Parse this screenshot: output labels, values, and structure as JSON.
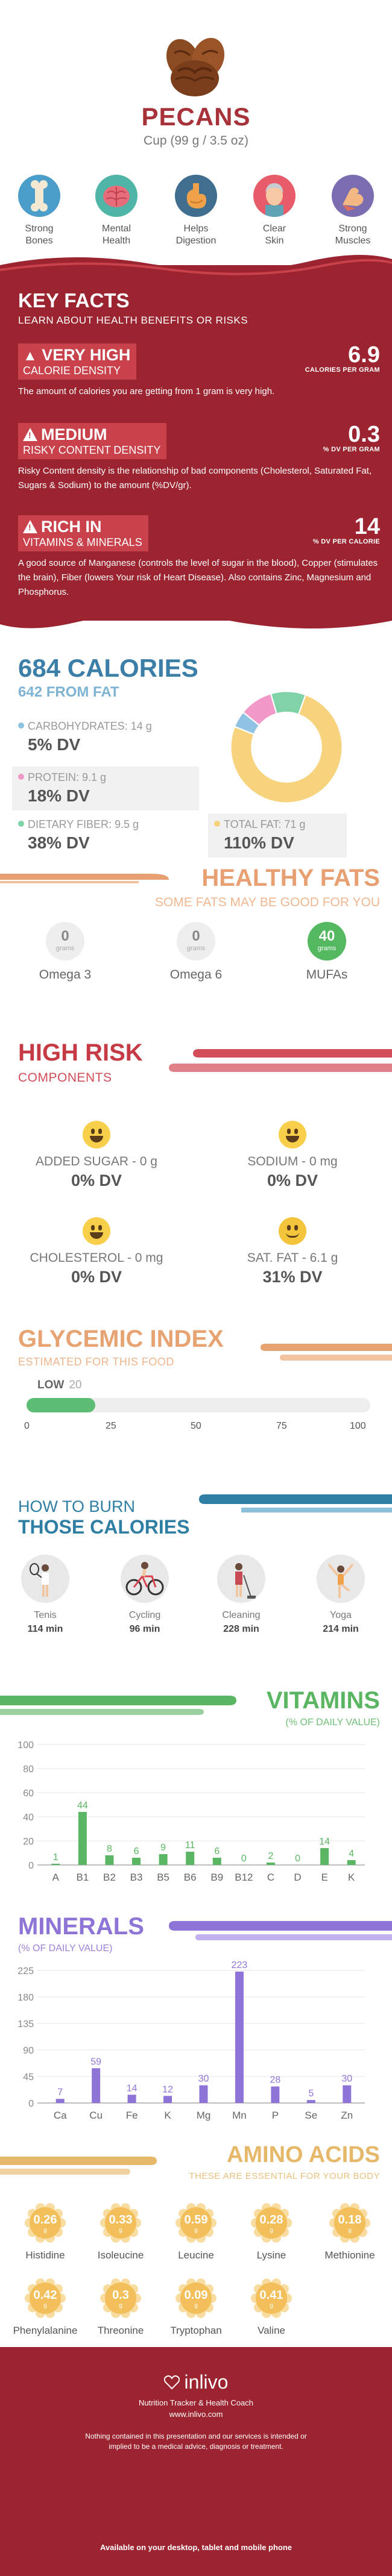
{
  "header": {
    "title": "PECANS",
    "serving": "Cup (99 g / 3.5 oz)",
    "benefits": [
      {
        "label_line1": "Strong",
        "label_line2": "Bones",
        "icon": "bone-icon"
      },
      {
        "label_line1": "Mental",
        "label_line2": "Health",
        "icon": "brain-icon"
      },
      {
        "label_line1": "Helps",
        "label_line2": "Digestion",
        "icon": "stomach-icon"
      },
      {
        "label_line1": "Clear",
        "label_line2": "Skin",
        "icon": "face-icon"
      },
      {
        "label_line1": "Strong",
        "label_line2": "Muscles",
        "icon": "muscle-icon"
      }
    ]
  },
  "key_facts": {
    "title": "KEY FACTS",
    "subtitle": "LEARN ABOUT HEALTH BENEFITS OR RISKS",
    "calorie": {
      "level": "VERY HIGH",
      "label": "CALORIE DENSITY",
      "value": "6.9",
      "unit": "CALORIES PER GRAM",
      "desc": "The amount of calories you are getting from 1 gram is very high."
    },
    "risky": {
      "level": "MEDIUM",
      "label": "RISKY CONTENT DENSITY",
      "value": "0.3",
      "unit": "% DV PER GRAM",
      "desc": "Risky Content density is the relationship of bad components (Cholesterol, Saturated Fat, Sugars & Sodium) to the amount (%DV/gr)."
    },
    "rich": {
      "level": "RICH IN",
      "label": "VITAMINS & MINERALS",
      "value": "14",
      "unit": "% DV PER CALORIE",
      "desc": "A good source of Manganese (controls the level of sugar in the blood), Copper (stimulates the brain), Fiber (lowers Your risk of Heart Disease). Also contains Zinc, Magnesium and Phosphorus."
    }
  },
  "calories": {
    "title": "684 CALORIES",
    "subtitle": "642 FROM FAT",
    "macros": [
      {
        "name": "CARBOHYDRATES: 14 g",
        "dv": "5% DV",
        "color": "#8ec3e3"
      },
      {
        "name": "PROTEIN: 9.1 g",
        "dv": "18% DV",
        "color": "#f19aca"
      },
      {
        "name": "DIETARY FIBER: 9.5 g",
        "dv": "38% DV",
        "color": "#7fd3a7"
      },
      {
        "name": "TOTAL FAT: 71 g",
        "dv": "110% DV",
        "color": "#f6d37c"
      }
    ],
    "donut": [
      {
        "name": "Total Fat",
        "value": 71,
        "color": "#f6d37c"
      },
      {
        "name": "Carbohydrates",
        "value": 4.5,
        "color": "#8ec3e3"
      },
      {
        "name": "Protein",
        "value": 9.1,
        "color": "#f19aca"
      },
      {
        "name": "Dietary Fiber",
        "value": 9.5,
        "color": "#7fd3a7"
      }
    ]
  },
  "fats": {
    "title": "HEALTHY FATS",
    "subtitle": "SOME FATS MAY BE GOOD FOR YOU",
    "unit": "grams",
    "items": [
      {
        "name": "Omega 3",
        "value": "0"
      },
      {
        "name": "Omega 6",
        "value": "0"
      },
      {
        "name": "MUFAs",
        "value": "40"
      }
    ]
  },
  "risk": {
    "title": "HIGH RISK",
    "subtitle": "COMPONENTS",
    "items": [
      {
        "name": "ADDED SUGAR - 0 g",
        "dv": "0% DV"
      },
      {
        "name": "SODIUM - 0 mg",
        "dv": "0% DV"
      },
      {
        "name": "CHOLESTEROL - 0 mg",
        "dv": "0% DV"
      },
      {
        "name": "SAT. FAT - 6.1 g",
        "dv": "31% DV"
      }
    ]
  },
  "glycemic": {
    "title": "GLYCEMIC INDEX",
    "subtitle": "ESTIMATED FOR THIS FOOD",
    "level": "LOW",
    "value": 20,
    "value_label": "20",
    "ticks": [
      "0",
      "25",
      "50",
      "75",
      "100"
    ]
  },
  "burn": {
    "title1": "HOW TO BURN",
    "title2": "THOSE CALORIES",
    "activities": [
      {
        "name": "Tenis",
        "minutes": "114 min"
      },
      {
        "name": "Cycling",
        "minutes": "96 min"
      },
      {
        "name": "Cleaning",
        "minutes": "228 min"
      },
      {
        "name": "Yoga",
        "minutes": "214 min"
      }
    ]
  },
  "vitamins": {
    "title": "VITAMINS",
    "subtitle": "(% OF DAILY VALUE)",
    "color": "#5ab662",
    "ticks": [
      "100",
      "80",
      "60",
      "40",
      "20",
      "0"
    ],
    "ymax": 100,
    "categories": [
      "A",
      "B1",
      "B2",
      "B3",
      "B5",
      "B6",
      "B9",
      "B12",
      "C",
      "D",
      "E",
      "K"
    ],
    "values": [
      1,
      44,
      8,
      6,
      9,
      11,
      6,
      0,
      2,
      0,
      14,
      4
    ],
    "labels": [
      "1",
      "44",
      "8",
      "6",
      "9",
      "11",
      "6",
      "0",
      "2",
      "0",
      "14",
      "4"
    ]
  },
  "minerals": {
    "title": "MINERALS",
    "subtitle": "(% OF DAILY VALUE)",
    "color": "#8f74d8",
    "ticks": [
      "225",
      "180",
      "135",
      "90",
      "45",
      "0"
    ],
    "ymax": 225,
    "categories": [
      "Ca",
      "Cu",
      "Fe",
      "K",
      "Mg",
      "Mn",
      "P",
      "Se",
      "Zn"
    ],
    "values": [
      7,
      59,
      14,
      12,
      30,
      223,
      28,
      5,
      30
    ],
    "labels": [
      "7",
      "59",
      "14",
      "12",
      "30",
      "223",
      "28",
      "5",
      "30"
    ]
  },
  "amino": {
    "title": "AMINO ACIDS",
    "subtitle": "THESE ARE ESSENTIAL FOR YOUR BODY",
    "unit": "g",
    "items": [
      {
        "name": "Histidine",
        "value": "0.26"
      },
      {
        "name": "Isoleucine",
        "value": "0.33"
      },
      {
        "name": "Leucine",
        "value": "0.59"
      },
      {
        "name": "Lysine",
        "value": "0.28"
      },
      {
        "name": "Methionine",
        "value": "0.18"
      },
      {
        "name": "Phenylalanine",
        "value": "0.42"
      },
      {
        "name": "Threonine",
        "value": "0.3"
      },
      {
        "name": "Tryptophan",
        "value": "0.09"
      },
      {
        "name": "Valine",
        "value": "0.41"
      }
    ]
  },
  "footer": {
    "brand": "inlivo",
    "tagline": "Nutrition Tracker & Health Coach",
    "url": "www.inlivo.com",
    "disclaimer": "Nothing contained in this presentation and our services is intended or implied to be a medical advice, diagnosis or treatment.",
    "available": "Available on your desktop, tablet and mobile phone"
  },
  "chart_data": [
    {
      "type": "bar",
      "title": "VITAMINS",
      "subtitle": "(% OF DAILY VALUE)",
      "categories": [
        "A",
        "B1",
        "B2",
        "B3",
        "B5",
        "B6",
        "B9",
        "B12",
        "C",
        "D",
        "E",
        "K"
      ],
      "values": [
        1,
        44,
        8,
        6,
        9,
        11,
        6,
        0,
        2,
        0,
        14,
        4
      ],
      "ylim": [
        0,
        100
      ],
      "grid": true
    },
    {
      "type": "bar",
      "title": "MINERALS",
      "subtitle": "(% OF DAILY VALUE)",
      "categories": [
        "Ca",
        "Cu",
        "Fe",
        "K",
        "Mg",
        "Mn",
        "P",
        "Se",
        "Zn"
      ],
      "values": [
        7,
        59,
        14,
        12,
        30,
        223,
        28,
        5,
        30
      ],
      "ylim": [
        0,
        225
      ],
      "grid": true
    },
    {
      "type": "pie",
      "categories": [
        "Total Fat",
        "Carbohydrates",
        "Protein",
        "Dietary Fiber"
      ],
      "values": [
        71,
        4.5,
        9.1,
        9.5
      ]
    }
  ]
}
